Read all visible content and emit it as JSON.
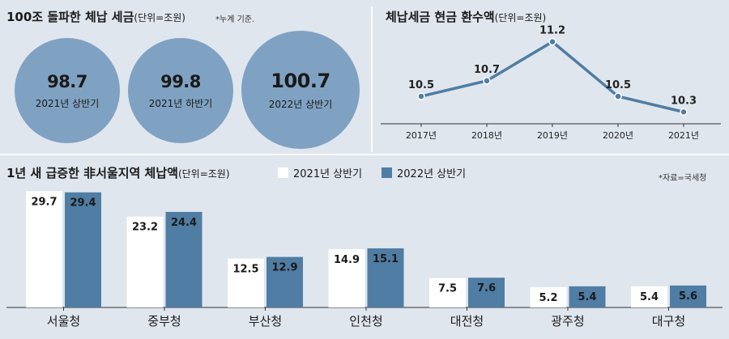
{
  "totals": {
    "title": "100조 돌파한 체납 세금",
    "unit": "(단위=조원)",
    "note": "*누계 기준.",
    "circles": [
      {
        "value": "98.7",
        "label": "2021년 상반기"
      },
      {
        "value": "99.8",
        "label": "2021년 하반기"
      },
      {
        "value": "100.7",
        "label": "2022년 상반기"
      }
    ]
  },
  "refund": {
    "title": "체납세금 현금 환수액",
    "unit": "(단위=조원)"
  },
  "regional": {
    "title": "1년 새 급증한 非서울지역 체납액",
    "unit": "(단위=조원)",
    "legend": [
      "2021년 상반기",
      "2022년 상반기"
    ],
    "source": "*자료=국세청"
  },
  "colors": {
    "background": "#dfe6ee",
    "circle": "#7fa2c2",
    "line": "#4f7da3",
    "bar_2021": "#ffffff",
    "bar_2022": "#4f7da3"
  },
  "chart_data": [
    {
      "type": "line",
      "title": "체납세금 현금 환수액",
      "x": [
        "2017년",
        "2018년",
        "2019년",
        "2020년",
        "2021년"
      ],
      "series": [
        {
          "values": [
            10.5,
            10.7,
            11.2,
            10.5,
            10.3
          ]
        }
      ],
      "data_labels": [
        "10.5",
        "10.7",
        "11.2",
        "10.5",
        "10.3"
      ],
      "ylim": [
        10.2,
        11.3
      ],
      "grid": false
    },
    {
      "type": "bar",
      "title": "1년 새 급증한 非서울지역 체납액",
      "categories": [
        "서울청",
        "중부청",
        "부산청",
        "인천청",
        "대전청",
        "광주청",
        "대구청"
      ],
      "series": [
        {
          "name": "2021년 상반기",
          "values": [
            29.7,
            23.2,
            12.5,
            14.9,
            7.5,
            5.2,
            5.4
          ]
        },
        {
          "name": "2022년 상반기",
          "values": [
            29.4,
            24.4,
            12.9,
            15.1,
            7.6,
            5.4,
            5.6
          ]
        }
      ],
      "data_labels": [
        [
          "29.7",
          "23.2",
          "12.5",
          "14.9",
          "7.5",
          "5.2",
          "5.4"
        ],
        [
          "29.4",
          "24.4",
          "12.9",
          "15.1",
          "7.6",
          "5.4",
          "5.6"
        ]
      ],
      "ylim": [
        0,
        31
      ],
      "grid": false,
      "legend": "top"
    }
  ]
}
